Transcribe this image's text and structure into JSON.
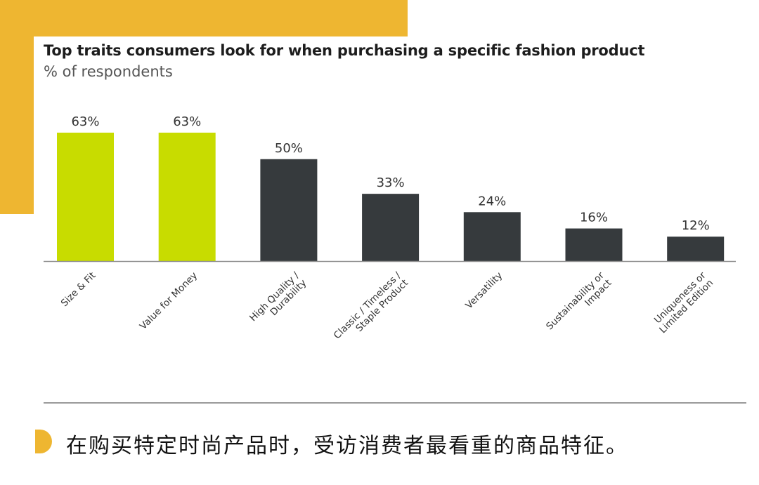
{
  "colors": {
    "accent": "#EEB631",
    "highlight_bar": "#C8DC00",
    "dark_bar": "#363A3D",
    "axis": "#8f8f8f"
  },
  "chart_data": {
    "type": "bar",
    "title": "Top traits consumers look for when purchasing a specific fashion product",
    "subtitle": "% of respondents",
    "categories": [
      "Size & Fit",
      "Value for Money",
      "High Quality /\nDurability",
      "Classic / Timeless /\nStaple Product",
      "Versatility",
      "Sustainability or\nImpact",
      "Uniqueness or\nLimited Edition"
    ],
    "values": [
      63,
      63,
      50,
      33,
      24,
      16,
      12
    ],
    "value_labels": [
      "63%",
      "63%",
      "50%",
      "33%",
      "24%",
      "16%",
      "12%"
    ],
    "highlighted": [
      true,
      true,
      false,
      false,
      false,
      false,
      false
    ],
    "ylim": [
      0,
      63
    ],
    "grid": false,
    "legend": "none"
  },
  "caption": {
    "text": "在购买特定时尚产品时，受访消费者最看重的商品特征。"
  }
}
